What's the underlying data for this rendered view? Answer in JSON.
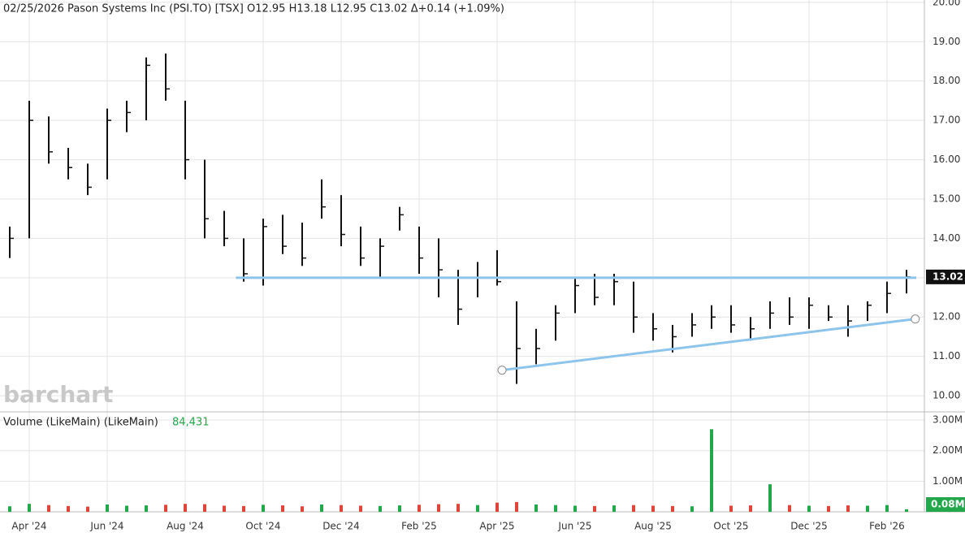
{
  "chart_data": {
    "type": "ohlc",
    "title": "02/25/2026 Pason Systems Inc (PSI.TO) [TSX] O12.95 H13.18 L12.95 C13.02 Δ+0.14 (+1.09%)",
    "watermark": "barchart",
    "categories": [
      null,
      "Apr '24",
      null,
      null,
      null,
      "Jun '24",
      null,
      null,
      null,
      "Aug '24",
      null,
      null,
      null,
      "Oct '24",
      null,
      null,
      null,
      "Dec '24",
      null,
      null,
      null,
      "Feb '25",
      null,
      null,
      null,
      "Apr '25",
      null,
      null,
      null,
      "Jun '25",
      null,
      null,
      null,
      "Aug '25",
      null,
      null,
      null,
      "Oct '25",
      null,
      null,
      null,
      "Dec '25",
      null,
      null,
      null,
      "Feb '26",
      null
    ],
    "high": [
      14.3,
      17.5,
      17.1,
      16.3,
      15.9,
      17.3,
      17.5,
      18.6,
      18.7,
      17.5,
      16.0,
      14.7,
      14.0,
      14.5,
      14.6,
      14.4,
      15.5,
      15.1,
      14.3,
      14.0,
      14.8,
      14.3,
      14.0,
      13.2,
      13.4,
      13.7,
      12.4,
      11.7,
      12.3,
      13.0,
      13.1,
      13.1,
      12.9,
      12.1,
      11.8,
      12.1,
      12.3,
      12.3,
      12.0,
      12.4,
      12.5,
      12.5,
      12.3,
      12.3,
      12.4,
      12.9,
      13.2
    ],
    "low": [
      13.5,
      14.0,
      15.9,
      15.5,
      15.1,
      15.5,
      16.7,
      17.0,
      17.5,
      15.5,
      14.0,
      13.8,
      12.9,
      12.8,
      13.6,
      13.3,
      14.5,
      13.8,
      13.3,
      13.0,
      14.2,
      13.1,
      12.5,
      11.8,
      12.5,
      12.8,
      10.3,
      10.8,
      11.4,
      12.1,
      12.3,
      12.3,
      11.6,
      11.4,
      11.1,
      11.5,
      11.7,
      11.6,
      11.4,
      11.7,
      11.8,
      11.7,
      11.9,
      11.5,
      11.9,
      12.1,
      12.6
    ],
    "close": [
      14.0,
      17.0,
      16.2,
      15.8,
      15.3,
      17.0,
      17.2,
      18.4,
      17.8,
      16.0,
      14.5,
      14.0,
      13.1,
      14.3,
      13.8,
      13.5,
      14.8,
      14.1,
      13.5,
      13.8,
      14.6,
      13.5,
      13.2,
      12.2,
      13.0,
      12.9,
      11.2,
      11.2,
      12.1,
      12.8,
      12.5,
      12.9,
      12.0,
      11.7,
      11.5,
      11.8,
      12.0,
      11.8,
      11.7,
      12.1,
      12.0,
      12.3,
      12.0,
      11.9,
      12.3,
      12.6,
      13.02
    ],
    "ylim": [
      9.63,
      20.06
    ],
    "yticks": [
      {
        "value": 10,
        "label": "10.00"
      },
      {
        "value": 11,
        "label": "11.00"
      },
      {
        "value": 12,
        "label": "12.00"
      },
      {
        "value": 13,
        "label": "13.00"
      },
      {
        "value": 14,
        "label": "14.00"
      },
      {
        "value": 15,
        "label": "15.00"
      },
      {
        "value": 16,
        "label": "16.00"
      },
      {
        "value": 17,
        "label": "17.00"
      },
      {
        "value": 18,
        "label": "18.00"
      },
      {
        "value": 19,
        "label": "19.00"
      },
      {
        "value": 20,
        "label": "20.00"
      }
    ],
    "last_price": 13.02,
    "trendlines": [
      {
        "x": [
          11.6,
          46.5
        ],
        "y": [
          13.0,
          13.0
        ]
      },
      {
        "x": [
          25.25,
          46.45
        ],
        "y": [
          10.65,
          11.95
        ]
      }
    ],
    "trendline_color": "#8cc4ec",
    "volume_title": "Volume (LikeMain)  (LikeMain)",
    "last_volume": {
      "value": 84431,
      "label": "84,431",
      "tag": "0.08M"
    },
    "volume": [
      180000,
      260000,
      220000,
      190000,
      170000,
      240000,
      200000,
      210000,
      230000,
      260000,
      250000,
      200000,
      190000,
      230000,
      210000,
      180000,
      240000,
      220000,
      200000,
      190000,
      210000,
      230000,
      250000,
      260000,
      220000,
      300000,
      320000,
      240000,
      220000,
      200000,
      190000,
      210000,
      220000,
      200000,
      190000,
      180000,
      2700000,
      200000,
      210000,
      900000,
      220000,
      200000,
      190000,
      210000,
      200000,
      220000,
      84431
    ],
    "vlim": [
      0,
      3240000
    ],
    "vticks": [
      {
        "value": 1000000,
        "label": "1.00M"
      },
      {
        "value": 2000000,
        "label": "2.00M"
      },
      {
        "value": 3000000,
        "label": "3.00M"
      }
    ],
    "up_color": "#22a84a",
    "down_color": "#e0453a",
    "grid": true
  }
}
